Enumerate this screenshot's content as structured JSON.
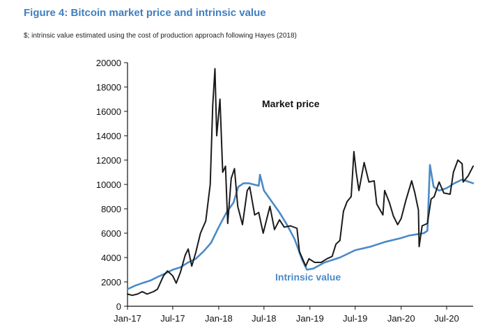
{
  "figure": {
    "title": "Figure 4: Bitcoin market price and intrinsic value",
    "subtitle": "$; intrinsic value estimated using the cost of production approach following Hayes (2018)"
  },
  "colors": {
    "title": "#3f7fc0",
    "market_price": "#1a1a1a",
    "intrinsic_value": "#4a8ac8",
    "axis": "#111111"
  },
  "chart_data": {
    "type": "line",
    "title": "Figure 4: Bitcoin market price and intrinsic value",
    "subtitle": "$; intrinsic value estimated using the cost of production approach following Hayes (2018)",
    "xlabel": "",
    "ylabel": "",
    "xlim": [
      "2017-01-01",
      "2020-10-15"
    ],
    "ylim": [
      0,
      20000
    ],
    "y_ticks": [
      0,
      2000,
      4000,
      6000,
      8000,
      10000,
      12000,
      14000,
      16000,
      18000,
      20000
    ],
    "y_tick_labels": [
      "0",
      "2000",
      "4000",
      "6000",
      "8000",
      "10000",
      "12000",
      "14000",
      "16000",
      "18000",
      "20000"
    ],
    "x_ticks": [
      "2017-01-01",
      "2017-07-01",
      "2018-01-01",
      "2018-07-01",
      "2019-01-01",
      "2019-07-01",
      "2020-01-01",
      "2020-07-01"
    ],
    "x_tick_labels": [
      "Jan-17",
      "Jul-17",
      "Jan-18",
      "Jul-18",
      "Jan-19",
      "Jul-19",
      "Jan-20",
      "Jul-20"
    ],
    "grid": false,
    "legend": "none (direct labels)",
    "annotations": [
      {
        "text": "Market price",
        "series": "market",
        "color": "#111111"
      },
      {
        "text": "Intrinsic value",
        "series": "intrinsic",
        "color": "#4a8ac8"
      }
    ],
    "series": [
      {
        "key": "market",
        "name": "Market price",
        "color": "#1a1a1a",
        "points": [
          [
            "2017-01-01",
            1000
          ],
          [
            "2017-01-20",
            900
          ],
          [
            "2017-02-10",
            1000
          ],
          [
            "2017-03-01",
            1200
          ],
          [
            "2017-03-20",
            1000
          ],
          [
            "2017-04-15",
            1200
          ],
          [
            "2017-05-01",
            1400
          ],
          [
            "2017-05-25",
            2500
          ],
          [
            "2017-06-10",
            2900
          ],
          [
            "2017-07-01",
            2500
          ],
          [
            "2017-07-15",
            1900
          ],
          [
            "2017-08-01",
            2800
          ],
          [
            "2017-08-20",
            4200
          ],
          [
            "2017-09-01",
            4700
          ],
          [
            "2017-09-15",
            3300
          ],
          [
            "2017-10-01",
            4400
          ],
          [
            "2017-10-20",
            6000
          ],
          [
            "2017-11-10",
            7000
          ],
          [
            "2017-11-28",
            10000
          ],
          [
            "2017-12-08",
            16500
          ],
          [
            "2017-12-17",
            19500
          ],
          [
            "2017-12-24",
            14000
          ],
          [
            "2018-01-06",
            17000
          ],
          [
            "2018-01-17",
            11000
          ],
          [
            "2018-01-28",
            11500
          ],
          [
            "2018-02-06",
            6800
          ],
          [
            "2018-02-20",
            10500
          ],
          [
            "2018-03-05",
            11300
          ],
          [
            "2018-03-18",
            8200
          ],
          [
            "2018-04-06",
            6700
          ],
          [
            "2018-04-25",
            9500
          ],
          [
            "2018-05-05",
            9800
          ],
          [
            "2018-05-25",
            7500
          ],
          [
            "2018-06-10",
            7700
          ],
          [
            "2018-06-28",
            6000
          ],
          [
            "2018-07-25",
            8200
          ],
          [
            "2018-08-12",
            6300
          ],
          [
            "2018-09-01",
            7100
          ],
          [
            "2018-09-20",
            6500
          ],
          [
            "2018-10-15",
            6600
          ],
          [
            "2018-11-10",
            6400
          ],
          [
            "2018-11-20",
            4500
          ],
          [
            "2018-12-15",
            3300
          ],
          [
            "2018-12-28",
            3900
          ],
          [
            "2019-01-20",
            3600
          ],
          [
            "2019-02-15",
            3600
          ],
          [
            "2019-03-10",
            3900
          ],
          [
            "2019-03-31",
            4100
          ],
          [
            "2019-04-15",
            5100
          ],
          [
            "2019-05-01",
            5400
          ],
          [
            "2019-05-15",
            7800
          ],
          [
            "2019-05-30",
            8600
          ],
          [
            "2019-06-15",
            9000
          ],
          [
            "2019-06-26",
            12700
          ],
          [
            "2019-07-05",
            11000
          ],
          [
            "2019-07-16",
            9500
          ],
          [
            "2019-08-06",
            11800
          ],
          [
            "2019-08-25",
            10200
          ],
          [
            "2019-09-15",
            10300
          ],
          [
            "2019-09-25",
            8400
          ],
          [
            "2019-10-20",
            7500
          ],
          [
            "2019-10-27",
            9500
          ],
          [
            "2019-11-15",
            8500
          ],
          [
            "2019-12-01",
            7400
          ],
          [
            "2019-12-18",
            6700
          ],
          [
            "2020-01-01",
            7200
          ],
          [
            "2020-01-20",
            8700
          ],
          [
            "2020-02-12",
            10300
          ],
          [
            "2020-02-25",
            9300
          ],
          [
            "2020-03-10",
            7900
          ],
          [
            "2020-03-13",
            4900
          ],
          [
            "2020-03-25",
            6600
          ],
          [
            "2020-04-15",
            6800
          ],
          [
            "2020-04-30",
            8800
          ],
          [
            "2020-05-12",
            9000
          ],
          [
            "2020-06-01",
            10200
          ],
          [
            "2020-06-20",
            9300
          ],
          [
            "2020-07-15",
            9200
          ],
          [
            "2020-07-28",
            11000
          ],
          [
            "2020-08-15",
            12000
          ],
          [
            "2020-09-01",
            11700
          ],
          [
            "2020-09-05",
            10200
          ],
          [
            "2020-09-25",
            10700
          ],
          [
            "2020-10-10",
            11300
          ],
          [
            "2020-10-15",
            11500
          ]
        ]
      },
      {
        "key": "intrinsic",
        "name": "Intrinsic value",
        "color": "#4a8ac8",
        "points": [
          [
            "2017-01-01",
            1400
          ],
          [
            "2017-02-01",
            1700
          ],
          [
            "2017-03-01",
            1900
          ],
          [
            "2017-04-01",
            2100
          ],
          [
            "2017-05-01",
            2400
          ],
          [
            "2017-06-01",
            2700
          ],
          [
            "2017-07-01",
            3000
          ],
          [
            "2017-08-01",
            3200
          ],
          [
            "2017-09-01",
            3600
          ],
          [
            "2017-10-01",
            3900
          ],
          [
            "2017-11-01",
            4500
          ],
          [
            "2017-12-01",
            5200
          ],
          [
            "2018-01-01",
            6500
          ],
          [
            "2018-02-01",
            7700
          ],
          [
            "2018-03-01",
            8500
          ],
          [
            "2018-03-20",
            9800
          ],
          [
            "2018-04-10",
            10100
          ],
          [
            "2018-05-01",
            10100
          ],
          [
            "2018-05-20",
            10000
          ],
          [
            "2018-06-10",
            9900
          ],
          [
            "2018-06-15",
            10800
          ],
          [
            "2018-07-01",
            9500
          ],
          [
            "2018-08-01",
            8600
          ],
          [
            "2018-09-01",
            7700
          ],
          [
            "2018-10-01",
            6700
          ],
          [
            "2018-11-01",
            5500
          ],
          [
            "2018-12-01",
            3800
          ],
          [
            "2018-12-20",
            3000
          ],
          [
            "2019-01-15",
            3100
          ],
          [
            "2019-03-01",
            3600
          ],
          [
            "2019-05-01",
            4000
          ],
          [
            "2019-07-01",
            4600
          ],
          [
            "2019-09-01",
            4900
          ],
          [
            "2019-11-01",
            5300
          ],
          [
            "2020-01-01",
            5600
          ],
          [
            "2020-02-01",
            5800
          ],
          [
            "2020-03-01",
            5900
          ],
          [
            "2020-04-01",
            6000
          ],
          [
            "2020-04-15",
            6200
          ],
          [
            "2020-04-25",
            11600
          ],
          [
            "2020-05-10",
            9800
          ],
          [
            "2020-06-01",
            9500
          ],
          [
            "2020-07-01",
            9700
          ],
          [
            "2020-08-01",
            10100
          ],
          [
            "2020-09-01",
            10400
          ],
          [
            "2020-10-15",
            10100
          ]
        ]
      }
    ]
  }
}
